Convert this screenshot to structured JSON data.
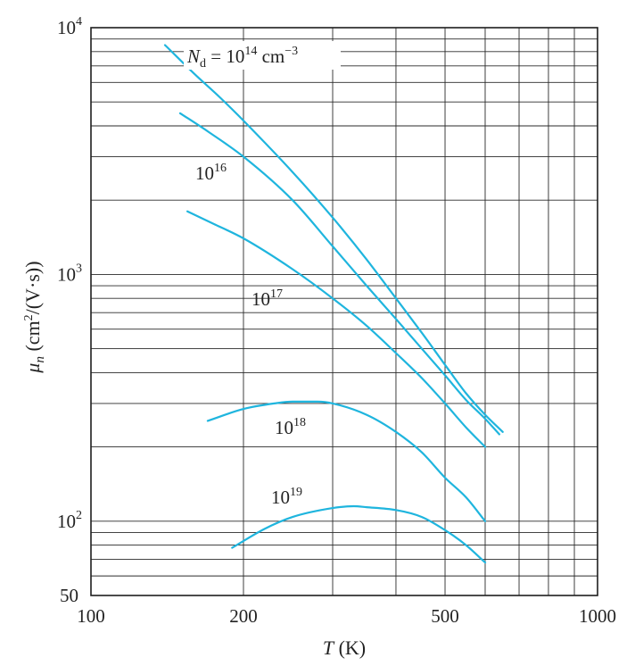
{
  "chart_data": {
    "type": "line",
    "title": "",
    "xlabel": {
      "var": "T",
      "unit": " (K)"
    },
    "ylabel": {
      "var": "μ",
      "sub": "n",
      "unit_pre": " (cm",
      "unit_sup": "2",
      "unit_post": "/(V·s))"
    },
    "x_scale": "log",
    "y_scale": "log",
    "xlim": [
      100,
      1000
    ],
    "ylim": [
      50,
      10000
    ],
    "grid": true,
    "line_color": "#1fb5de",
    "x_ticks": [
      {
        "value": 100,
        "label": "100"
      },
      {
        "value": 200,
        "label": "200"
      },
      {
        "value": 500,
        "label": "500"
      },
      {
        "value": 1000,
        "label": "1000"
      }
    ],
    "y_ticks": [
      {
        "value": 10000,
        "base": "10",
        "exp": "4"
      },
      {
        "value": 1000,
        "base": "10",
        "exp": "3"
      },
      {
        "value": 100,
        "base": "10",
        "exp": "2"
      },
      {
        "value": 50,
        "base": "50",
        "exp": ""
      }
    ],
    "x_grid": [
      200,
      300,
      400,
      500,
      600,
      700,
      800,
      900,
      1000
    ],
    "y_grid": [
      60,
      70,
      80,
      90,
      100,
      200,
      300,
      400,
      500,
      600,
      700,
      800,
      900,
      1000,
      2000,
      3000,
      4000,
      5000,
      6000,
      7000,
      8000,
      9000
    ],
    "series": [
      {
        "name": "N_d = 10^14 cm^-3",
        "label_parts": {
          "var": "N",
          "sub": "d",
          "eq": " = 10",
          "exp": "14",
          "unit": " cm",
          "unit_exp": "−3"
        },
        "x": [
          140,
          160,
          180,
          200,
          250,
          300,
          350,
          400,
          450,
          500,
          550,
          600,
          650
        ],
        "y": [
          8500,
          6500,
          5200,
          4200,
          2600,
          1700,
          1150,
          800,
          580,
          430,
          330,
          270,
          230
        ]
      },
      {
        "name": "10^16",
        "label_parts": {
          "base": "10",
          "exp": "16"
        },
        "x": [
          150,
          170,
          200,
          250,
          300,
          350,
          400,
          450,
          500,
          550,
          600,
          640
        ],
        "y": [
          4500,
          3800,
          3000,
          2000,
          1300,
          900,
          660,
          500,
          390,
          310,
          260,
          225
        ]
      },
      {
        "name": "10^17",
        "label_parts": {
          "base": "10",
          "exp": "17"
        },
        "x": [
          155,
          175,
          200,
          250,
          300,
          350,
          400,
          450,
          500,
          550,
          600
        ],
        "y": [
          1800,
          1600,
          1400,
          1050,
          800,
          620,
          480,
          380,
          300,
          240,
          200
        ]
      },
      {
        "name": "10^18",
        "label_parts": {
          "base": "10",
          "exp": "18"
        },
        "x": [
          170,
          200,
          230,
          250,
          280,
          300,
          350,
          400,
          450,
          500,
          550,
          600
        ],
        "y": [
          255,
          285,
          300,
          305,
          305,
          300,
          270,
          230,
          190,
          150,
          125,
          100
        ]
      },
      {
        "name": "10^19",
        "label_parts": {
          "base": "10",
          "exp": "19"
        },
        "x": [
          190,
          220,
          250,
          300,
          330,
          350,
          400,
          450,
          500,
          550,
          600
        ],
        "y": [
          78,
          93,
          104,
          113,
          115,
          114,
          111,
          104,
          92,
          80,
          68
        ]
      }
    ]
  }
}
